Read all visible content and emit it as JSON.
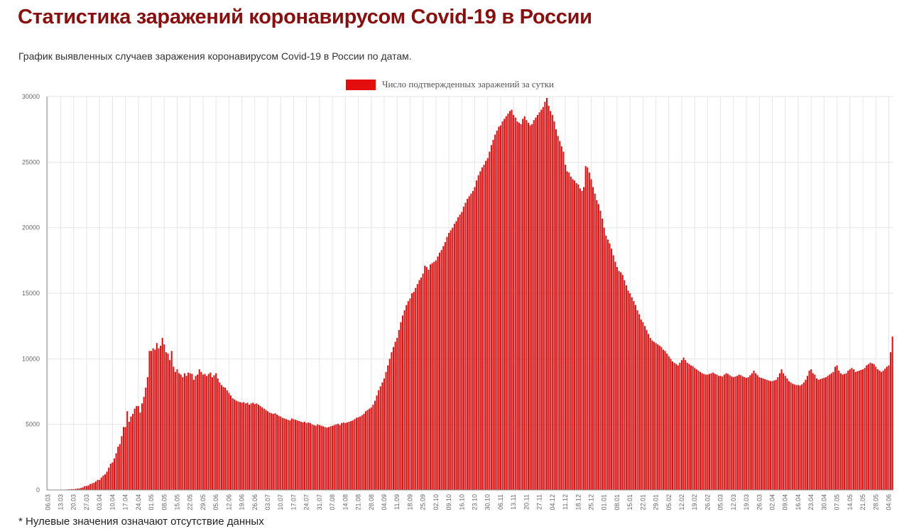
{
  "title": "Статистика заражений коронавирусом Covid-19 в России",
  "subtitle": "График выявленных случаев заражения коронавирусом Covid-19 в России по датам.",
  "footnote": "* Нулевые значения означают отсутствие данных",
  "colors": {
    "bar": "#e30d0d",
    "title": "#8b0e0e",
    "grid": "#e6e6e6",
    "axis": "#888888"
  },
  "chart_data": {
    "type": "bar",
    "legend": {
      "position": "top-center",
      "entries": [
        "Число подтвержденных заражений за сутки"
      ]
    },
    "series": [
      {
        "name": "Число подтвержденных заражений за сутки"
      }
    ],
    "ylim": [
      0,
      30000
    ],
    "yticks": [
      0,
      5000,
      10000,
      15000,
      20000,
      25000,
      30000
    ],
    "grid": true,
    "x_tick_labels": [
      "06.03",
      "13.03",
      "20.03",
      "27.03",
      "03.04",
      "10.04",
      "17.04",
      "24.04",
      "01.05",
      "08.05",
      "15.05",
      "22.05",
      "29.05",
      "05.06",
      "12.06",
      "19.06",
      "26.06",
      "03.07",
      "10.07",
      "17.07",
      "24.07",
      "31.07",
      "07.08",
      "14.08",
      "21.08",
      "28.08",
      "04.09",
      "11.09",
      "18.09",
      "25.09",
      "02.10",
      "09.10",
      "16.10",
      "23.10",
      "30.10",
      "06.11",
      "13.11",
      "20.11",
      "27.11",
      "04.12",
      "11.12",
      "18.12",
      "25.12",
      "01.01",
      "08.01",
      "15.01",
      "22.01",
      "29.01",
      "05.02",
      "12.02",
      "19.02",
      "26.02",
      "05.03",
      "12.03",
      "19.03",
      "26.03",
      "02.04",
      "09.04",
      "16.04",
      "23.04",
      "30.04",
      "07.05",
      "14.05",
      "21.05",
      "28.05",
      "04.06"
    ],
    "x_tick_every_days": 7,
    "daily_values_weekly": [
      [
        0,
        0,
        0,
        0,
        0,
        0,
        0
      ],
      [
        10,
        15,
        20,
        30,
        40,
        50,
        60
      ],
      [
        60,
        80,
        100,
        120,
        150,
        200,
        300
      ],
      [
        300,
        350,
        450,
        500,
        550,
        650,
        770
      ],
      [
        770,
        950,
        1100,
        1200,
        1400,
        1700,
        2000
      ],
      [
        2100,
        2400,
        2800,
        3300,
        3500,
        4100,
        4800
      ],
      [
        4800,
        6000,
        5200,
        5600,
        5800,
        6200,
        6400
      ],
      [
        6400,
        5900,
        6600,
        7100,
        7800,
        8600,
        10600
      ],
      [
        10600,
        10800,
        10700,
        11200,
        10800,
        11000,
        11600
      ],
      [
        11100,
        10500,
        10400,
        9900,
        10600,
        9400,
        9000
      ],
      [
        9200,
        8900,
        8800,
        8600,
        8900,
        8700,
        8950
      ],
      [
        8900,
        8850,
        8400,
        8700,
        8800,
        9200,
        9000
      ],
      [
        8800,
        8850,
        8700,
        8850,
        8950,
        8600,
        8750
      ],
      [
        8900,
        8500,
        8200,
        8000,
        7850,
        7800,
        7600
      ],
      [
        7400,
        7200,
        7000,
        6900,
        6800,
        6750,
        6700
      ],
      [
        6650,
        6700,
        6600,
        6650,
        6500,
        6600,
        6650
      ],
      [
        6550,
        6600,
        6500,
        6400,
        6300,
        6200,
        6100
      ],
      [
        6000,
        5900,
        5850,
        5800,
        5850,
        5750,
        5650
      ],
      [
        5600,
        5500,
        5450,
        5400,
        5350,
        5300,
        5450
      ],
      [
        5400,
        5350,
        5300,
        5250,
        5200,
        5150,
        5200
      ],
      [
        5100,
        5150,
        5100,
        5000,
        4950,
        4900,
        5000
      ],
      [
        4950,
        4900,
        4850,
        4800,
        4750,
        4800,
        4850
      ],
      [
        4900,
        4950,
        5000,
        5050,
        4950,
        5100,
        5150
      ],
      [
        5100,
        5150,
        5200,
        5250,
        5300,
        5400,
        5500
      ],
      [
        5550,
        5600,
        5700,
        5800,
        6000,
        6100,
        6200
      ],
      [
        6300,
        6500,
        6800,
        7200,
        7600,
        7900,
        8200
      ],
      [
        8500,
        9000,
        9500,
        10000,
        10500,
        10900,
        11300
      ],
      [
        11600,
        12200,
        12800,
        13300,
        13700,
        14100,
        14400
      ],
      [
        14600,
        15000,
        15100,
        15400,
        15700,
        16000,
        16200
      ],
      [
        16500,
        17100,
        17000,
        16800,
        17200,
        17300,
        17400
      ],
      [
        17500,
        17800,
        18100,
        18300,
        18600,
        18900,
        19300
      ],
      [
        19600,
        19800,
        20000,
        20300,
        20500,
        20800,
        21000
      ],
      [
        21200,
        21600,
        21900,
        22200,
        22400,
        22600,
        22800
      ],
      [
        23100,
        23600,
        24000,
        24300,
        24600,
        24800,
        25100
      ],
      [
        25300,
        25800,
        26300,
        26700,
        27100,
        27400,
        27700
      ],
      [
        27800,
        28100,
        28300,
        28500,
        28700,
        28900,
        29000
      ],
      [
        28600,
        28400,
        28100,
        28000,
        27900,
        28300,
        28500
      ],
      [
        28200,
        28000,
        27800,
        27900,
        28200,
        28400,
        28600
      ],
      [
        28800,
        29000,
        29200,
        29600,
        29900,
        29300,
        28900
      ],
      [
        28600,
        28100,
        27500,
        27000,
        26600,
        26200,
        25800
      ],
      [
        24800,
        24300,
        24200,
        23900,
        23700,
        23600,
        23400
      ],
      [
        23300,
        23000,
        22800,
        23100,
        24700,
        24600,
        24200
      ],
      [
        23700,
        23100,
        22600,
        22100,
        21800,
        21300,
        20700
      ],
      [
        20000,
        19400,
        19100,
        18800,
        18400,
        17900,
        17400
      ],
      [
        17000,
        16700,
        16600,
        16400,
        16000,
        15600,
        15200
      ],
      [
        15000,
        14700,
        14400,
        14100,
        13700,
        13400,
        13000
      ],
      [
        12800,
        12500,
        12200,
        11900,
        11600,
        11400,
        11300
      ],
      [
        11200,
        11100,
        11000,
        10900,
        10700,
        10600,
        10400
      ],
      [
        10200,
        10000,
        9800,
        9700,
        9600,
        9500,
        9700
      ],
      [
        9900,
        10100,
        9900,
        9700,
        9600,
        9500,
        9450
      ],
      [
        9300,
        9200,
        9100,
        9000,
        8900,
        8850,
        8800
      ],
      [
        8800,
        8850,
        8900,
        8950,
        8850,
        8800,
        8700
      ],
      [
        8700,
        8650,
        8800,
        8900,
        8850,
        8750,
        8650
      ],
      [
        8600,
        8650,
        8700,
        8800,
        8750,
        8650,
        8600
      ],
      [
        8550,
        8600,
        8750,
        8900,
        9100,
        8900,
        8750
      ],
      [
        8600,
        8550,
        8500,
        8450,
        8400,
        8350,
        8300
      ],
      [
        8300,
        8350,
        8400,
        8600,
        8900,
        9200,
        8900
      ],
      [
        8700,
        8500,
        8300,
        8200,
        8100,
        8050,
        8000
      ],
      [
        8000,
        7950,
        8050,
        8200,
        8400,
        8700,
        9100
      ],
      [
        9200,
        8900,
        8800,
        8500,
        8400,
        8450,
        8500
      ],
      [
        8550,
        8600,
        8700,
        8800,
        8900,
        9000,
        9400
      ],
      [
        9500,
        9100,
        8900,
        8800,
        8850,
        8900,
        9100
      ],
      [
        9200,
        9300,
        9200,
        9000,
        9050,
        9100,
        9150
      ],
      [
        9200,
        9300,
        9500,
        9600,
        9700,
        9650,
        9600
      ],
      [
        9400,
        9200,
        9100,
        9000,
        9100,
        9250,
        9400
      ],
      [
        9500,
        10500,
        11700
      ]
    ]
  }
}
